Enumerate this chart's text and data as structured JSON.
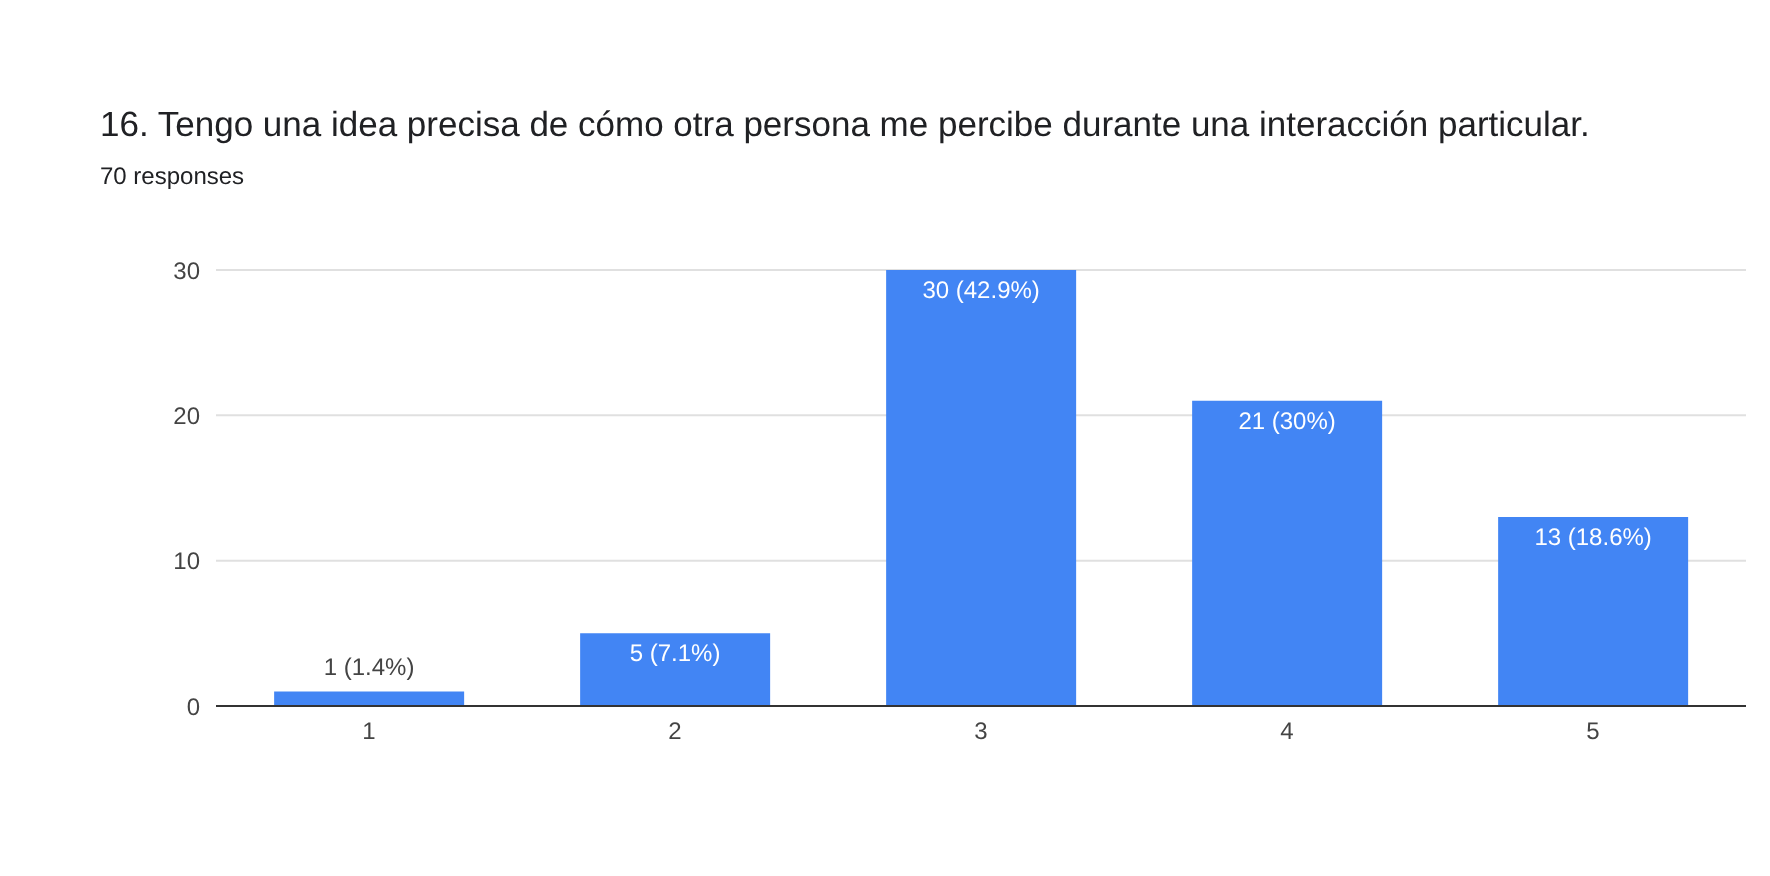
{
  "chart_data": {
    "type": "bar",
    "title": "16. Tengo una idea precisa de cómo otra persona me percibe durante una interacción particular.",
    "subtitle": "70 responses",
    "categories": [
      "1",
      "2",
      "3",
      "4",
      "5"
    ],
    "values": [
      1,
      5,
      30,
      21,
      13
    ],
    "value_labels": [
      "1 (1.4%)",
      "5 (7.1%)",
      "30 (42.9%)",
      "21 (30%)",
      "13 (18.6%)"
    ],
    "color": "#4285f4",
    "ylim": [
      0,
      30
    ],
    "yticks": [
      0,
      10,
      20,
      30
    ],
    "grid": "y"
  }
}
